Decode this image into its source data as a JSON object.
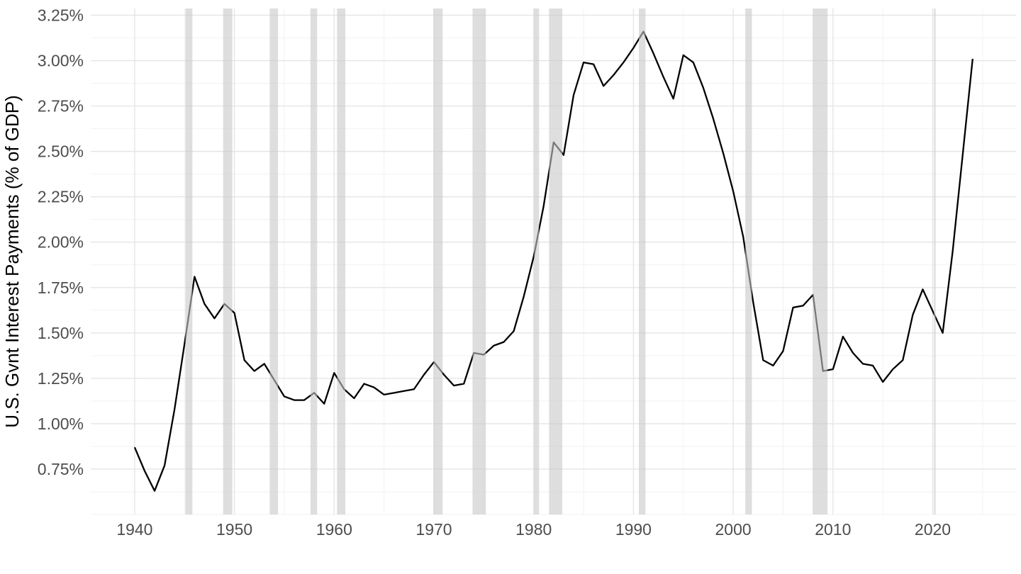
{
  "page": {
    "background": "#FFFFFF"
  },
  "chart_data": {
    "type": "line",
    "title": "",
    "xlabel": "",
    "ylabel": "U.S. Gvnt Interest Payments (% of GDP)",
    "series_name": "U.S. government interest payments as percent of GDP",
    "years": [
      1940,
      1941,
      1942,
      1943,
      1944,
      1945,
      1946,
      1947,
      1948,
      1949,
      1950,
      1951,
      1952,
      1953,
      1954,
      1955,
      1956,
      1957,
      1958,
      1959,
      1960,
      1961,
      1962,
      1963,
      1964,
      1965,
      1966,
      1967,
      1968,
      1969,
      1970,
      1971,
      1972,
      1973,
      1974,
      1975,
      1976,
      1977,
      1978,
      1979,
      1980,
      1981,
      1982,
      1983,
      1984,
      1985,
      1986,
      1987,
      1988,
      1989,
      1990,
      1991,
      1992,
      1993,
      1994,
      1995,
      1996,
      1997,
      1998,
      1999,
      2000,
      2001,
      2002,
      2003,
      2004,
      2005,
      2006,
      2007,
      2008,
      2009,
      2010,
      2011,
      2012,
      2013,
      2014,
      2015,
      2016,
      2017,
      2018,
      2019,
      2020,
      2021,
      2022,
      2023,
      2024
    ],
    "values": [
      0.87,
      0.74,
      0.63,
      0.77,
      1.08,
      1.44,
      1.81,
      1.66,
      1.58,
      1.66,
      1.61,
      1.35,
      1.29,
      1.33,
      1.24,
      1.15,
      1.13,
      1.13,
      1.17,
      1.11,
      1.28,
      1.19,
      1.14,
      1.22,
      1.2,
      1.16,
      1.17,
      1.18,
      1.19,
      1.27,
      1.34,
      1.27,
      1.21,
      1.22,
      1.39,
      1.38,
      1.43,
      1.45,
      1.51,
      1.7,
      1.92,
      2.2,
      2.55,
      2.48,
      2.81,
      2.99,
      2.98,
      2.86,
      2.92,
      2.99,
      3.07,
      3.16,
      3.04,
      2.91,
      2.79,
      3.03,
      2.99,
      2.85,
      2.68,
      2.49,
      2.28,
      2.03,
      1.67,
      1.35,
      1.32,
      1.4,
      1.64,
      1.65,
      1.71,
      1.29,
      1.3,
      1.48,
      1.39,
      1.33,
      1.32,
      1.23,
      1.3,
      1.35,
      1.6,
      1.74,
      1.62,
      1.5,
      1.95,
      2.48,
      3.01
    ],
    "recession_bands": [
      [
        1945.08,
        1945.79
      ],
      [
        1948.87,
        1949.79
      ],
      [
        1953.54,
        1954.37
      ],
      [
        1957.62,
        1958.29
      ],
      [
        1960.29,
        1961.12
      ],
      [
        1969.96,
        1970.87
      ],
      [
        1973.87,
        1975.21
      ],
      [
        1980.04,
        1980.54
      ],
      [
        1981.54,
        1982.87
      ],
      [
        1990.54,
        1991.21
      ],
      [
        2001.21,
        2001.87
      ],
      [
        2007.96,
        2009.46
      ],
      [
        2020.12,
        2020.29
      ]
    ],
    "x_domain": [
      1935.6,
      2028.35
    ],
    "y_domain": [
      0.5,
      3.287
    ],
    "x_major_ticks": [
      1940,
      1950,
      1960,
      1970,
      1980,
      1990,
      2000,
      2010,
      2020
    ],
    "x_tick_labels": [
      "1940",
      "1950",
      "1960",
      "1970",
      "1980",
      "1990",
      "2000",
      "2010",
      "2020"
    ],
    "x_minor_ticks": [
      1945,
      1955,
      1965,
      1975,
      1985,
      1995,
      2005,
      2015,
      2025
    ],
    "y_major_ticks": [
      0.75,
      1.0,
      1.25,
      1.5,
      1.75,
      2.0,
      2.25,
      2.5,
      2.75,
      3.0,
      3.25
    ],
    "y_tick_labels": [
      "0.75%",
      "1.00%",
      "1.25%",
      "1.50%",
      "1.75%",
      "2.00%",
      "2.25%",
      "2.50%",
      "2.75%",
      "3.00%",
      "3.25%"
    ],
    "y_minor_ticks": [
      0.5,
      0.625,
      0.875,
      1.125,
      1.375,
      1.625,
      1.875,
      2.125,
      2.375,
      2.625,
      2.875,
      3.125
    ],
    "grid": {
      "major": true,
      "minor": true
    },
    "legend": "none",
    "colors": {
      "line": "#000000",
      "recession_band_fill": "#C8C8C8",
      "recession_band_opacity": 0.6,
      "grid_major": "#E5E5E5",
      "grid_minor": "#F2F2F2",
      "tick_label": "#4D4D4D",
      "axis_title": "#000000",
      "background": "#FFFFFF"
    }
  }
}
